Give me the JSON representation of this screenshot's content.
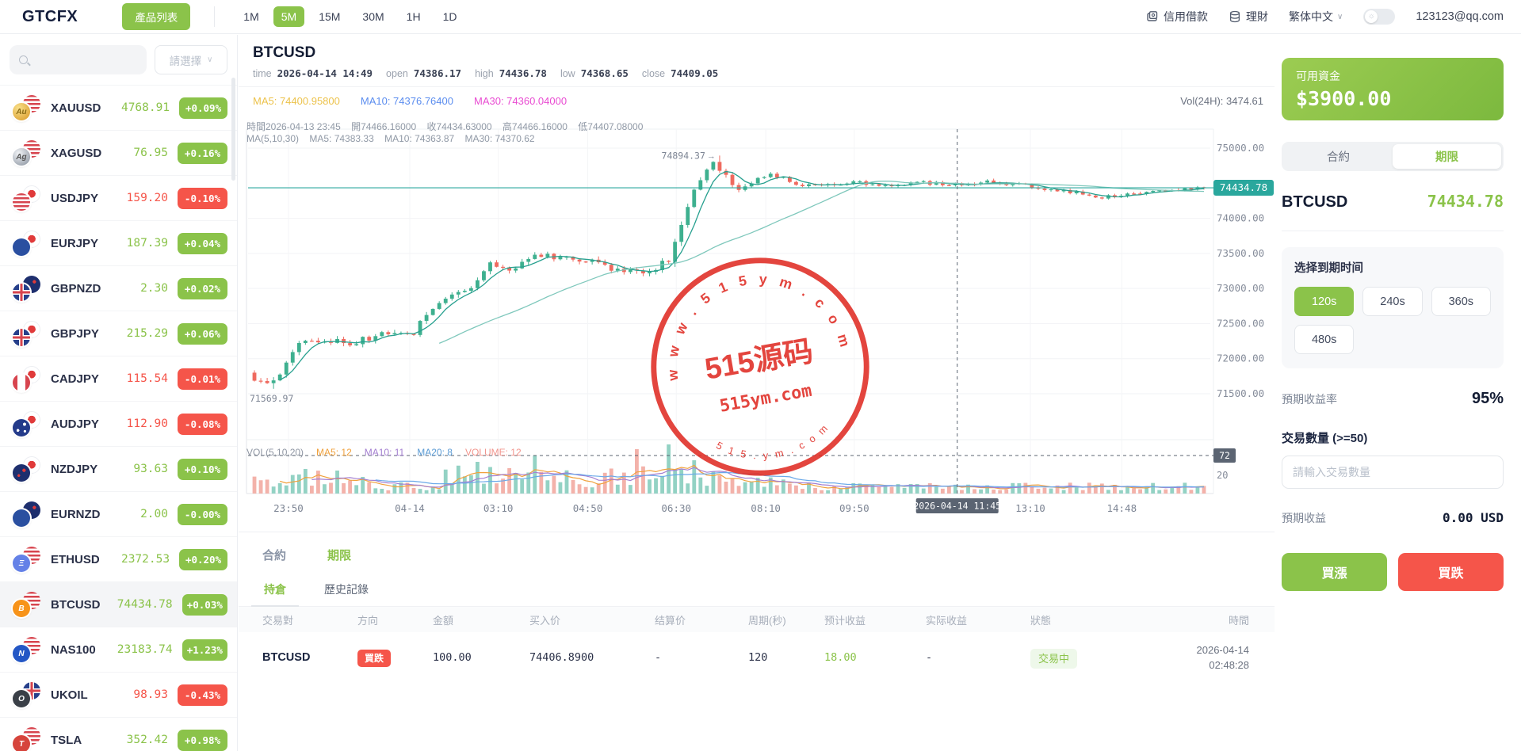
{
  "topbar": {
    "logo": "GTCFX",
    "product_list_button": "產品列表",
    "timeframes": [
      "1M",
      "5M",
      "15M",
      "30M",
      "1H",
      "1D"
    ],
    "active_timeframe": "5M",
    "credit_link": "信用借款",
    "wealth_link": "理財",
    "language": "繁体中文",
    "account_email": "123123@qq.com"
  },
  "sidebar": {
    "select_placeholder": "請選擇",
    "instruments": [
      {
        "symbol": "XAUUSD",
        "price": "4768.91",
        "change": "+0.09%",
        "dir": "up",
        "icon_front": "coin-gold",
        "icon_back": "flag-us",
        "glyph": "Au"
      },
      {
        "symbol": "XAGUSD",
        "price": "76.95",
        "change": "+0.16%",
        "dir": "up",
        "icon_front": "coin-silver",
        "icon_back": "flag-us",
        "glyph": "Ag"
      },
      {
        "symbol": "USDJPY",
        "price": "159.20",
        "change": "-0.10%",
        "dir": "down",
        "icon_front": "flag-us",
        "icon_back": "flag-jp",
        "glyph": ""
      },
      {
        "symbol": "EURJPY",
        "price": "187.39",
        "change": "+0.04%",
        "dir": "up",
        "icon_front": "flag-eu",
        "icon_back": "flag-jp",
        "glyph": ""
      },
      {
        "symbol": "GBPNZD",
        "price": "2.30",
        "change": "+0.02%",
        "dir": "up",
        "icon_front": "flag-uk",
        "icon_back": "flag-nz",
        "glyph": ""
      },
      {
        "symbol": "GBPJPY",
        "price": "215.29",
        "change": "+0.06%",
        "dir": "up",
        "icon_front": "flag-uk",
        "icon_back": "flag-jp",
        "glyph": ""
      },
      {
        "symbol": "CADJPY",
        "price": "115.54",
        "change": "-0.01%",
        "dir": "down",
        "icon_front": "flag-ca",
        "icon_back": "flag-jp",
        "glyph": ""
      },
      {
        "symbol": "AUDJPY",
        "price": "112.90",
        "change": "-0.08%",
        "dir": "down",
        "icon_front": "flag-au",
        "icon_back": "flag-jp",
        "glyph": ""
      },
      {
        "symbol": "NZDJPY",
        "price": "93.63",
        "change": "+0.10%",
        "dir": "up",
        "icon_front": "flag-nz",
        "icon_back": "flag-jp",
        "glyph": ""
      },
      {
        "symbol": "EURNZD",
        "price": "2.00",
        "change": "-0.00%",
        "dir": "up",
        "icon_front": "flag-eu",
        "icon_back": "flag-nz",
        "glyph": ""
      },
      {
        "symbol": "ETHUSD",
        "price": "2372.53",
        "change": "+0.20%",
        "dir": "up",
        "icon_front": "crypto-eth",
        "icon_back": "flag-us",
        "glyph": "Ξ"
      },
      {
        "symbol": "BTCUSD",
        "price": "74434.78",
        "change": "+0.03%",
        "dir": "up",
        "selected": true,
        "icon_front": "crypto-btc",
        "icon_back": "flag-us",
        "glyph": "B"
      },
      {
        "symbol": "NAS100",
        "price": "23183.74",
        "change": "+1.23%",
        "dir": "up",
        "icon_front": "idx-nas",
        "icon_back": "flag-us",
        "glyph": "N"
      },
      {
        "symbol": "UKOIL",
        "price": "98.93",
        "change": "-0.43%",
        "dir": "down",
        "icon_front": "cmd-oil",
        "icon_back": "flag-uk",
        "glyph": "O"
      },
      {
        "symbol": "TSLA",
        "price": "352.42",
        "change": "+0.98%",
        "dir": "up",
        "icon_front": "stock-tsla",
        "icon_back": "flag-us",
        "glyph": "T"
      }
    ]
  },
  "chart": {
    "symbol": "BTCUSD",
    "ohlc": {
      "time_label": "time",
      "time": "2026-04-14 14:49",
      "open_label": "open",
      "open": "74386.17",
      "high_label": "high",
      "high": "74436.78",
      "low_label": "low",
      "low": "74368.65",
      "close_label": "close",
      "close": "74409.05"
    },
    "ma_header": [
      {
        "label": "MA5: 74400.95800",
        "color": "#ecc24b"
      },
      {
        "label": "MA10: 74376.76400",
        "color": "#5b8def"
      },
      {
        "label": "MA30: 74360.04000",
        "color": "#e94bd2"
      }
    ],
    "vol24h": "Vol(24H): 3474.61",
    "overlay_line1": "時間2026-04-13 23:45    開74466.16000    收74434.63000    高74466.16000    低74407.08000",
    "overlay_line2": "MA(5,10,30)    MA5: 74383.33    MA10: 74363.87    MA30: 74370.62",
    "vol_indicator": [
      {
        "label": "VOL(5,10,20)",
        "color": "#8f96a3"
      },
      {
        "label": "MA5: 12",
        "color": "#f0a13c"
      },
      {
        "label": "MA10: 11",
        "color": "#a47fd1"
      },
      {
        "label": "MA20: 8",
        "color": "#5b9bd5"
      },
      {
        "label": "VOLUME: 12",
        "color": "#f2958d"
      }
    ]
  },
  "chart_data": {
    "type": "candlestick",
    "title": "BTCUSD 5M",
    "y_ticks": [
      {
        "label": "75000.00",
        "v": 75000
      },
      {
        "label": "74000.00",
        "v": 74000
      },
      {
        "label": "73500.00",
        "v": 73500
      },
      {
        "label": "73000.00",
        "v": 73000
      },
      {
        "label": "72500.00",
        "v": 72500
      },
      {
        "label": "72000.00",
        "v": 72000
      },
      {
        "label": "71500.00",
        "v": 71500
      }
    ],
    "x_ticks": [
      {
        "label": "23:50",
        "f": 0.042
      },
      {
        "label": "04-14",
        "f": 0.168
      },
      {
        "label": "03:10",
        "f": 0.26
      },
      {
        "label": "04:50",
        "f": 0.353
      },
      {
        "label": "06:30",
        "f": 0.445
      },
      {
        "label": "08:10",
        "f": 0.538
      },
      {
        "label": "09:50",
        "f": 0.63
      },
      {
        "label": "13:10",
        "f": 0.813
      },
      {
        "label": "14:48",
        "f": 0.908
      }
    ],
    "current_price": 74434.78,
    "current_price_label": "74434.78",
    "high_price": 74894.37,
    "high_label": "74894.37",
    "low_price": 71569.97,
    "low_label": "71569.97",
    "crosshair_f": 0.737,
    "crosshair_time_label": "2026-04-14 11:45",
    "vol_crosshair_label": "72",
    "vol_tick_label": "20",
    "candle_count": 150,
    "price_anchors": [
      [
        0,
        71800
      ],
      [
        0.012,
        71640
      ],
      [
        0.025,
        71600
      ],
      [
        0.05,
        72200
      ],
      [
        0.08,
        72280
      ],
      [
        0.11,
        72200
      ],
      [
        0.14,
        72380
      ],
      [
        0.17,
        72320
      ],
      [
        0.2,
        72820
      ],
      [
        0.23,
        73000
      ],
      [
        0.255,
        73380
      ],
      [
        0.275,
        73260
      ],
      [
        0.3,
        73440
      ],
      [
        0.33,
        73480
      ],
      [
        0.36,
        73380
      ],
      [
        0.39,
        73240
      ],
      [
        0.42,
        73250
      ],
      [
        0.44,
        73400
      ],
      [
        0.455,
        74050
      ],
      [
        0.47,
        74520
      ],
      [
        0.487,
        74820
      ],
      [
        0.5,
        74600
      ],
      [
        0.515,
        74380
      ],
      [
        0.53,
        74560
      ],
      [
        0.55,
        74620
      ],
      [
        0.575,
        74480
      ],
      [
        0.6,
        74460
      ],
      [
        0.63,
        74520
      ],
      [
        0.66,
        74470
      ],
      [
        0.7,
        74510
      ],
      [
        0.74,
        74480
      ],
      [
        0.78,
        74520
      ],
      [
        0.82,
        74450
      ],
      [
        0.86,
        74380
      ],
      [
        0.89,
        74300
      ],
      [
        0.92,
        74340
      ],
      [
        0.95,
        74390
      ],
      [
        0.98,
        74420
      ],
      [
        1,
        74435
      ]
    ],
    "vol_spikes": [
      [
        0.235,
        40,
        "up"
      ],
      [
        0.295,
        48,
        "up"
      ],
      [
        0.4,
        56,
        "down"
      ],
      [
        0.432,
        62,
        "up"
      ],
      [
        0.46,
        42,
        "up"
      ]
    ],
    "colors": {
      "up": "#3eb08f",
      "down": "#ef6a5f",
      "price_line": "#2aa79d",
      "accent": "#8bc34a"
    }
  },
  "watermark": {
    "top": "w w w . 5 1 5 y m . c o m",
    "center": "515源码",
    "sub": "515ym.com",
    "bottom": "5 1 5 . y m . c o m"
  },
  "bottom": {
    "tab_contract": "合約",
    "tab_expiry": "期限",
    "subtab_positions": "持倉",
    "subtab_history": "歷史記錄",
    "table": {
      "headers": [
        "交易對",
        "方向",
        "金額",
        "买入价",
        "结算价",
        "周期(秒)",
        "预计收益",
        "实际收益",
        "狀態",
        "時間"
      ],
      "rows": [
        {
          "pair": "BTCUSD",
          "direction": "買跌",
          "direction_type": "down",
          "amount": "100.00",
          "buy_price": "74406.8900",
          "settle_price": "-",
          "period": "120",
          "expected_profit": "18.00",
          "actual_profit": "-",
          "status": "交易中",
          "date": "2026-04-14",
          "time": "02:48:28"
        }
      ]
    }
  },
  "panel": {
    "balance_label": "可用資金",
    "balance_value": "$3900.00",
    "tab_contract": "合約",
    "tab_expiry": "期限",
    "symbol": "BTCUSD",
    "price": "74434.78",
    "expiry_title": "选择到期时间",
    "expiry_options": [
      "120s",
      "240s",
      "360s",
      "480s"
    ],
    "active_expiry": "120s",
    "rate_label": "預期收益率",
    "rate_value": "95%",
    "qty_label": "交易數量 (>=50)",
    "qty_placeholder": "請輸入交易數量",
    "profit_label": "預期收益",
    "profit_value": "0.00 USD",
    "buy_up": "買漲",
    "buy_down": "買跌"
  }
}
